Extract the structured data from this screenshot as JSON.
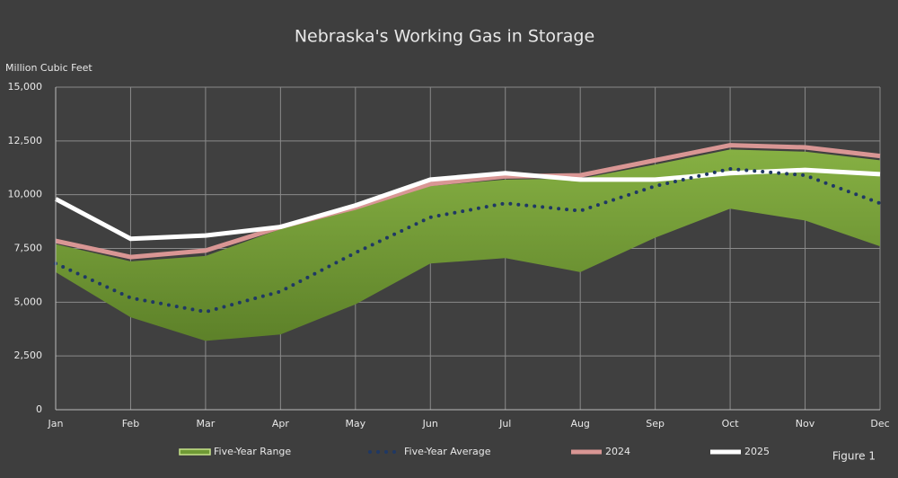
{
  "chart_data": {
    "type": "line",
    "title": "Nebraska's Working Gas in Storage",
    "ylabel": "Million Cubic Feet",
    "annotation": "Figure 1",
    "categories": [
      "Jan",
      "Feb",
      "Mar",
      "Apr",
      "May",
      "Jun",
      "Jul",
      "Aug",
      "Sep",
      "Oct",
      "Nov",
      "Dec"
    ],
    "ylim": [
      0,
      15000
    ],
    "yticks": [
      0,
      {
        "value": 2500,
        "label": "2,500"
      },
      {
        "value": 5000,
        "label": "5,000"
      },
      {
        "value": 7500,
        "label": "7,500"
      },
      {
        "value": 10000,
        "label": "10,000"
      },
      {
        "value": 12500,
        "label": "12,500"
      },
      {
        "value": 15000,
        "label": "15,000"
      }
    ],
    "grid": true,
    "legend": "bottom",
    "series": [
      {
        "name": "Five-Year Range",
        "color": "#6f9a35",
        "style": "range",
        "low": [
          6400,
          4300,
          3200,
          3500,
          4900,
          6800,
          7050,
          6400,
          8000,
          9350,
          8800,
          7600
        ],
        "high": [
          7700,
          6900,
          7150,
          8400,
          9300,
          10400,
          10700,
          10750,
          11400,
          12100,
          12000,
          11600
        ]
      },
      {
        "name": "Five-Year Average",
        "color": "#1f3864",
        "style": "dotted",
        "values": [
          6800,
          5200,
          4550,
          5500,
          7300,
          8950,
          9600,
          9250,
          10400,
          11200,
          10900,
          9600
        ]
      },
      {
        "name": "2024",
        "color": "#d99694",
        "style": "solid",
        "values": [
          7850,
          7100,
          7400,
          8500,
          9400,
          10500,
          10850,
          10900,
          11600,
          12300,
          12200,
          11800
        ]
      },
      {
        "name": "2025",
        "color": "#ffffff",
        "style": "solid",
        "values": [
          9800,
          7950,
          8100,
          8500,
          9500,
          10700,
          11000,
          10700,
          10700,
          11000,
          11150,
          10950
        ]
      }
    ]
  }
}
